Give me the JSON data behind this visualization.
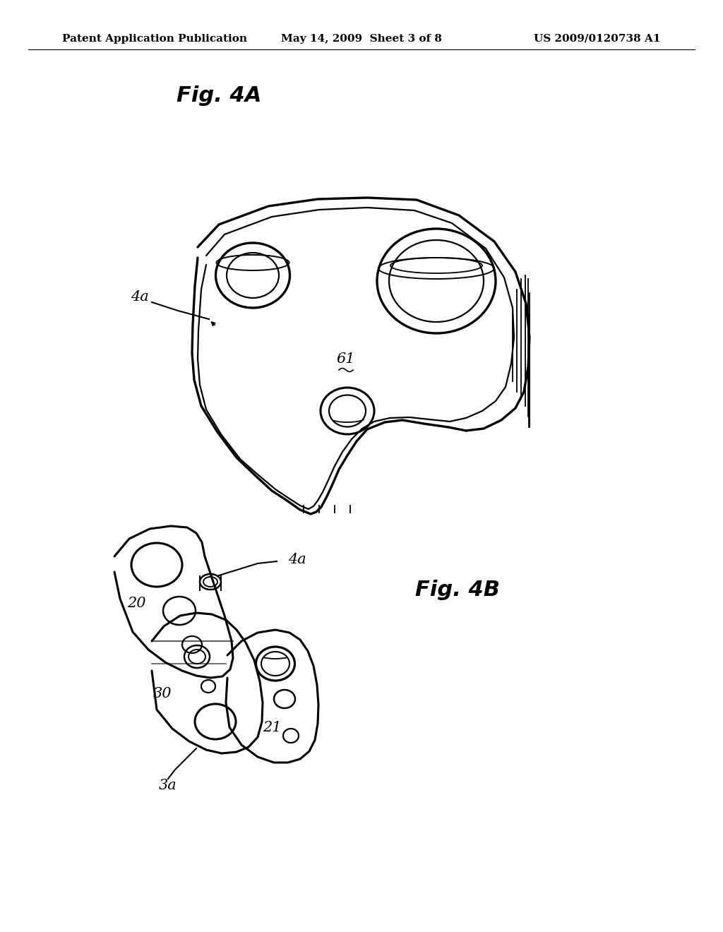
{
  "background_color": "#ffffff",
  "header_left": "Patent Application Publication",
  "header_center": "May 14, 2009  Sheet 3 of 8",
  "header_right": "US 2009/0120738 A1",
  "header_fontsize": 11,
  "fig4a_title": "Fig. 4A",
  "fig4b_title": "Fig. 4B",
  "title_fontsize": 22,
  "label_fontsize": 15,
  "line_color": "#000000",
  "line_width": 1.8
}
